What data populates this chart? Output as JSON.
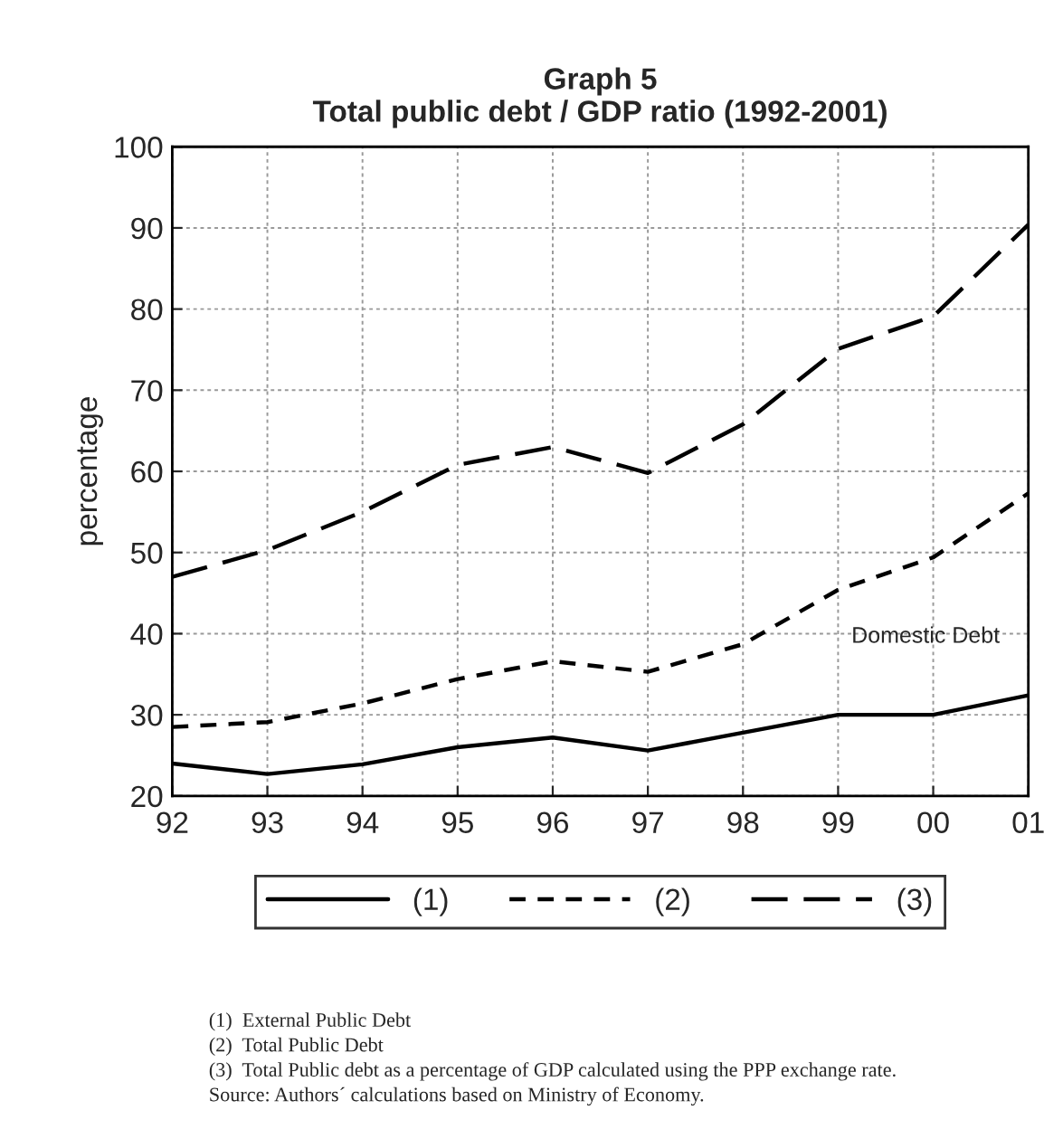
{
  "chart_data": {
    "type": "line",
    "title": "Graph 5\nTotal public debt / GDP ratio (1992-2001)",
    "ylabel": "percentage",
    "categories": [
      "92",
      "93",
      "94",
      "95",
      "96",
      "97",
      "98",
      "99",
      "00",
      "01"
    ],
    "series": [
      {
        "name": "(1)",
        "color": "#000000",
        "line_style": "solid",
        "values": [
          24,
          22.7,
          23.9,
          26,
          27.2,
          25.6,
          27.8,
          30,
          30,
          32.4
        ]
      },
      {
        "name": "(2)",
        "color": "#000000",
        "line_style": "dotted",
        "values": [
          28.5,
          29.1,
          31.4,
          34.4,
          36.6,
          35.3,
          38.7,
          45.4,
          49.4,
          57.3
        ]
      },
      {
        "name": "(3)",
        "color": "#000000",
        "line_style": "dashed",
        "values": [
          47,
          50.3,
          55,
          60.8,
          63,
          59.8,
          65.8,
          75.1,
          79.1,
          90.4
        ]
      }
    ],
    "ylim": [
      20,
      100
    ],
    "yticks": [
      20,
      30,
      40,
      50,
      60,
      70,
      80,
      90,
      100
    ],
    "grid": true,
    "legend": "bottom",
    "annotations": [
      "Domestic Debt",
      "(1)  External Public Debt",
      "(2)  Total Public Debt",
      "(3)  Total Public debt as a percentage of GDP calculated using the PPP exchange rate.",
      "Source: Authors´ calculations based on Ministry of Economy."
    ]
  }
}
